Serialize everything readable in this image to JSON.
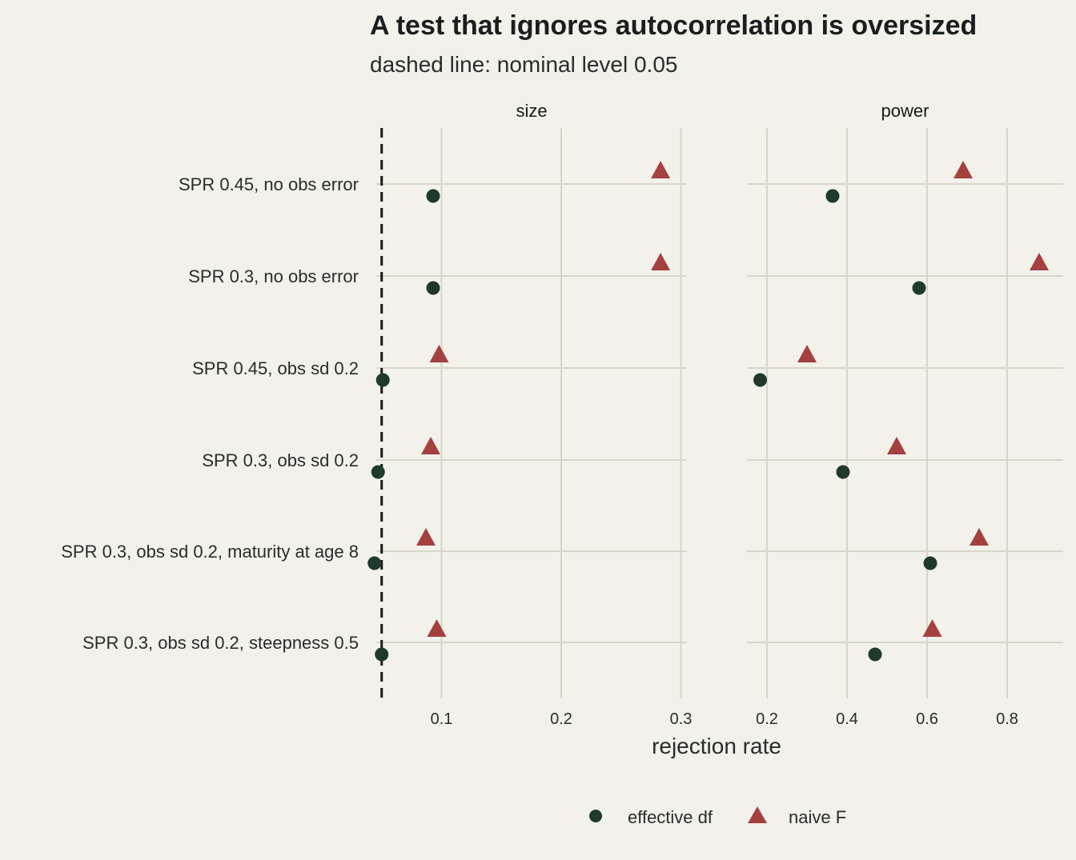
{
  "chart_data": {
    "type": "scatter",
    "title": "A test that ignores autocorrelation is oversized",
    "subtitle": "dashed line: nominal level 0.05",
    "xlabel": "rejection rate",
    "ylabel": "",
    "categories": [
      "SPR 0.45, no obs error",
      "SPR 0.3, no obs error",
      "SPR 0.45, obs sd 0.2",
      "SPR 0.3, obs sd 0.2",
      "SPR 0.3, obs sd 0.2, maturity at age 8",
      "SPR 0.3, obs sd 0.2, steepness 0.5"
    ],
    "facets": [
      {
        "name": "size",
        "xlim": [
          0.0455,
          0.305
        ],
        "xticks": [
          0.1,
          0.2,
          0.3
        ],
        "tick_labels": [
          "0.1",
          "0.2",
          "0.3"
        ],
        "reference_line": 0.05,
        "series": [
          {
            "name": "effective df",
            "values": [
              0.093,
              0.093,
              0.051,
              0.047,
              0.044,
              0.05
            ]
          },
          {
            "name": "naive F",
            "values": [
              0.283,
              0.283,
              0.098,
              0.091,
              0.087,
              0.096
            ]
          }
        ]
      },
      {
        "name": "power",
        "xlim": [
          0.15,
          0.94
        ],
        "xticks": [
          0.2,
          0.4,
          0.6,
          0.8
        ],
        "tick_labels": [
          "0.2",
          "0.4",
          "0.6",
          "0.8"
        ],
        "series": [
          {
            "name": "effective df",
            "values": [
              0.364,
              0.58,
              0.183,
              0.39,
              0.608,
              0.47
            ]
          },
          {
            "name": "naive F",
            "values": [
              0.69,
              0.88,
              0.3,
              0.524,
              0.73,
              0.613
            ]
          }
        ]
      }
    ],
    "legend": {
      "position": "bottom",
      "entries": [
        {
          "label": "effective df",
          "shape": "circle"
        },
        {
          "label": "naive F",
          "shape": "triangle"
        }
      ]
    },
    "grid": true,
    "colors": {
      "effective df": "#1f3a2c",
      "naive F": "#a44040",
      "background": "#f2f1ea",
      "grid": "#d8d6c8"
    }
  }
}
